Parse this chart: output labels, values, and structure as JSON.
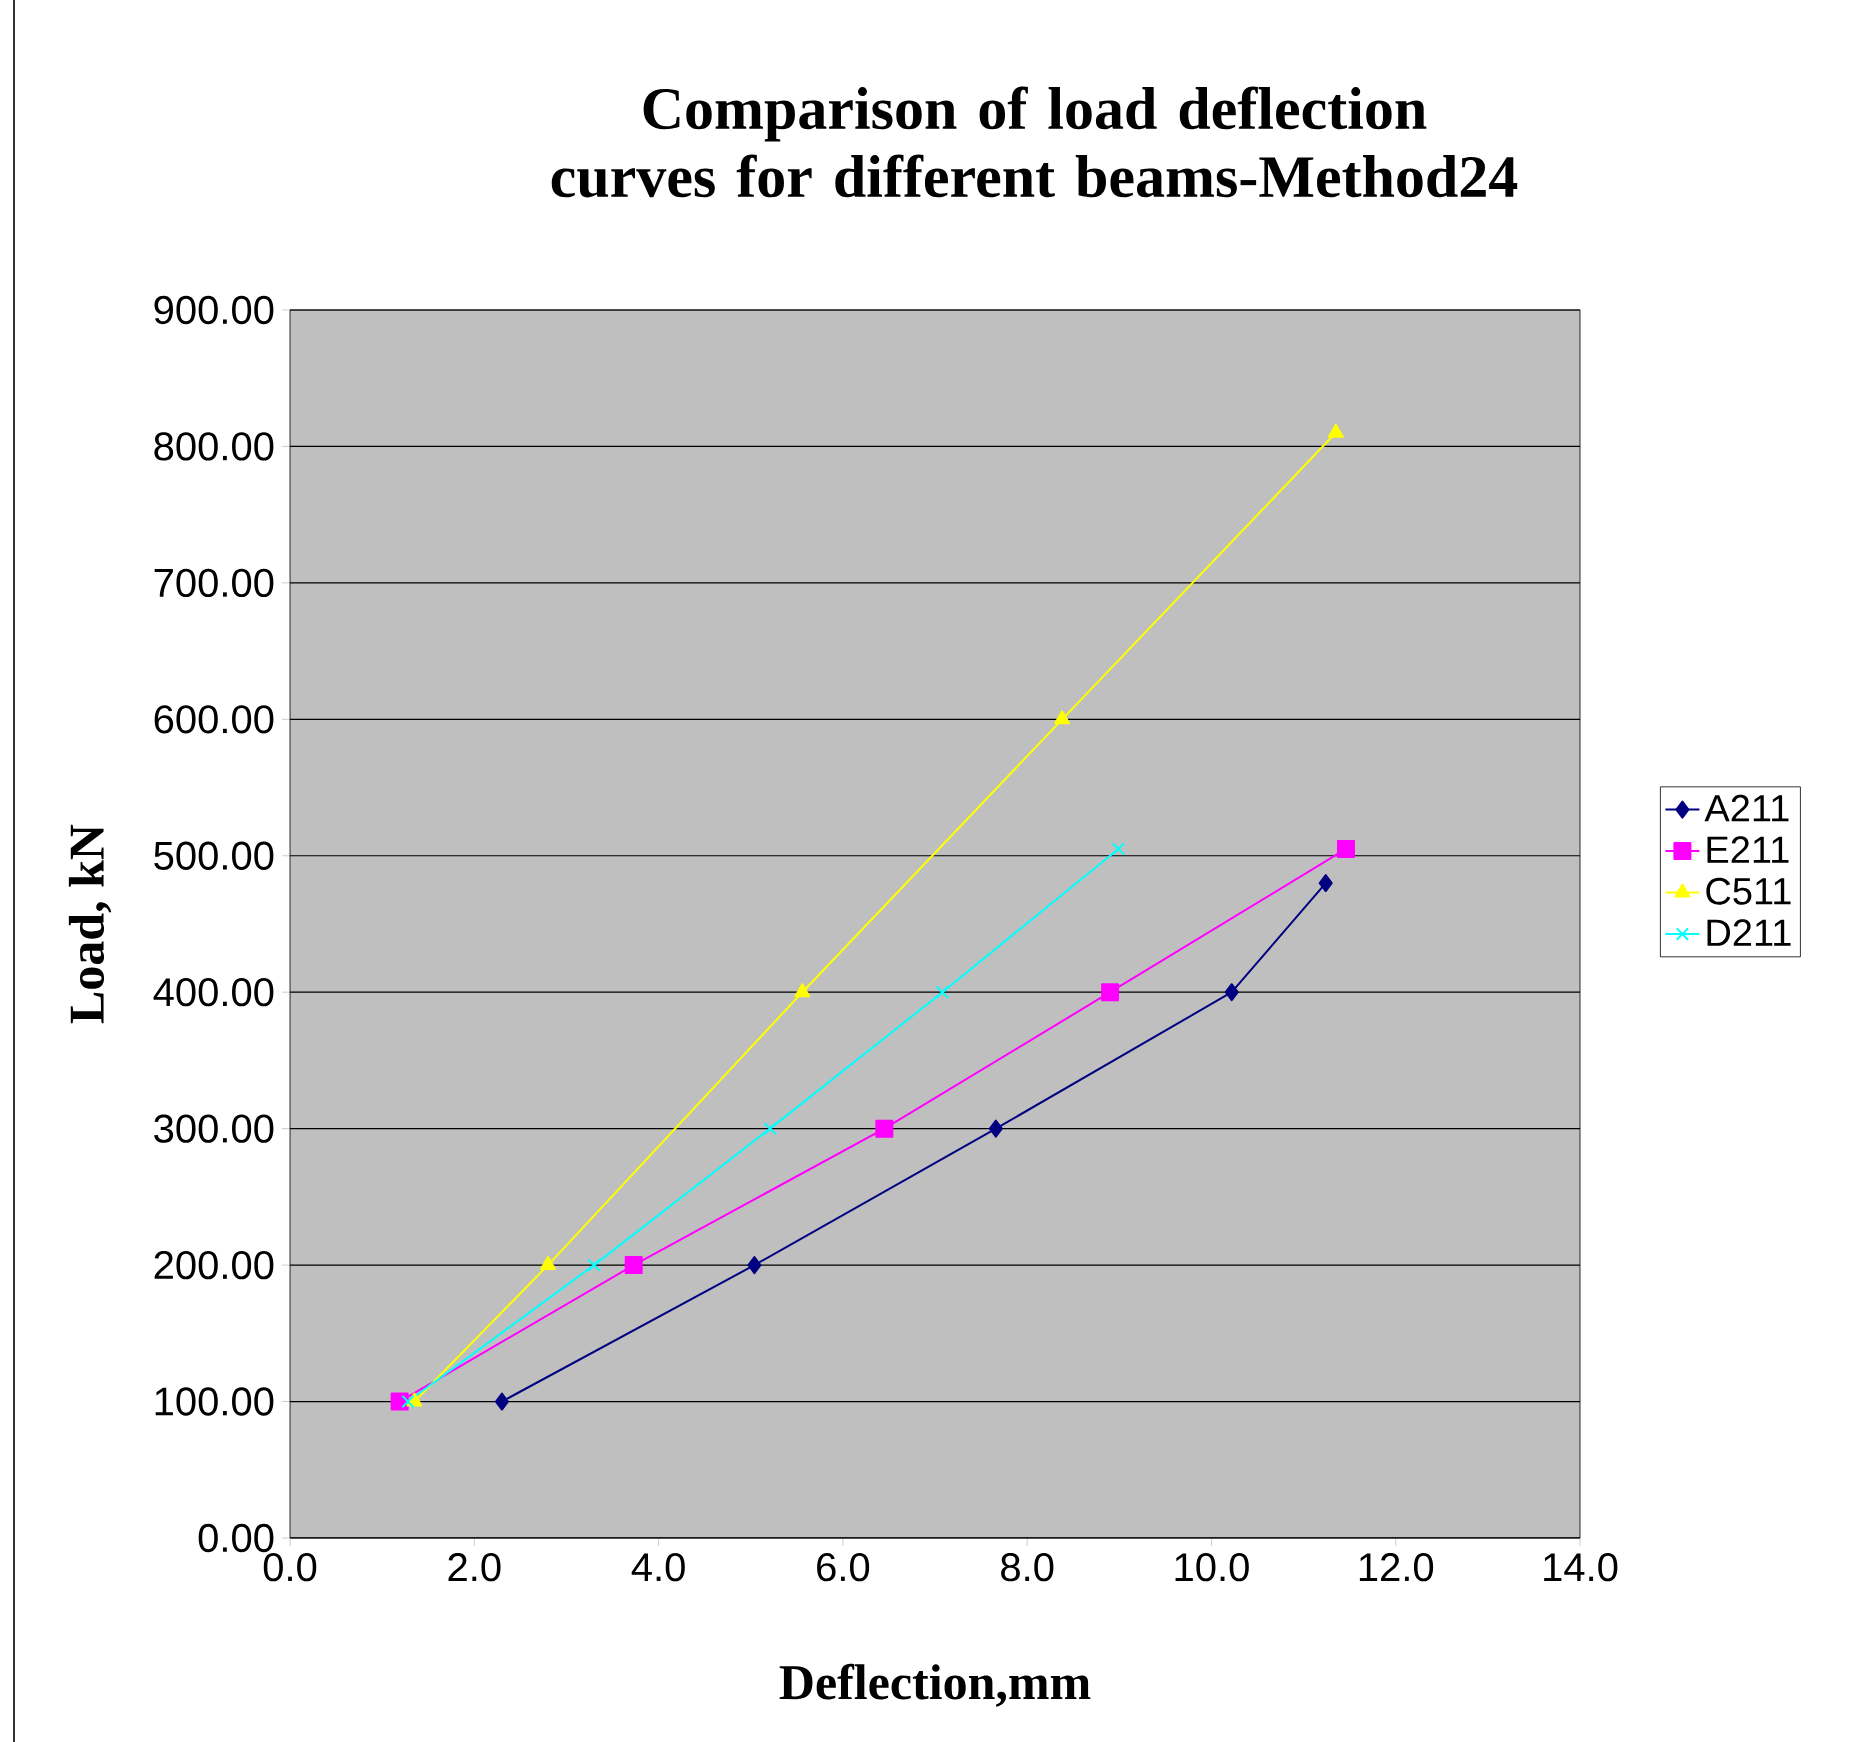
{
  "chart_data": {
    "type": "line",
    "title": "Comparison of load deflection curves for different beams-Method24",
    "xlabel": "Deflection,mm",
    "ylabel": "Load, kN",
    "series": [
      {
        "name": "A211",
        "color": "#000080",
        "marker": "diamond",
        "x": [
          2.3,
          5.04,
          7.66,
          10.22,
          11.24
        ],
        "values": [
          100,
          200,
          300,
          400,
          480
        ]
      },
      {
        "name": "E211",
        "color": "#ff00ff",
        "marker": "square",
        "x": [
          1.19,
          3.73,
          6.45,
          8.9,
          11.46
        ],
        "values": [
          100,
          200,
          300,
          400,
          505
        ]
      },
      {
        "name": "C511",
        "color": "#ffff00",
        "marker": "triangle",
        "x": [
          1.35,
          2.8,
          5.56,
          8.38,
          11.35
        ],
        "values": [
          100,
          200,
          400,
          600,
          810
        ]
      },
      {
        "name": "D211",
        "color": "#00ffff",
        "marker": "cross",
        "x": [
          1.28,
          3.3,
          5.21,
          7.08,
          8.99
        ],
        "values": [
          100,
          200,
          300,
          400,
          505
        ]
      }
    ],
    "xlim": [
      0,
      14
    ],
    "ylim": [
      0,
      900
    ],
    "xticks": [
      {
        "value": 0,
        "label": "0.0"
      },
      {
        "value": 2,
        "label": "2.0"
      },
      {
        "value": 4,
        "label": "4.0"
      },
      {
        "value": 6,
        "label": "6.0"
      },
      {
        "value": 8,
        "label": "8.0"
      },
      {
        "value": 10,
        "label": "10.0"
      },
      {
        "value": 12,
        "label": "12.0"
      },
      {
        "value": 14,
        "label": "14.0"
      }
    ],
    "yticks": [
      {
        "value": 0,
        "label": "0.00"
      },
      {
        "value": 100,
        "label": "100.00"
      },
      {
        "value": 200,
        "label": "200.00"
      },
      {
        "value": 300,
        "label": "300.00"
      },
      {
        "value": 400,
        "label": "400.00"
      },
      {
        "value": 500,
        "label": "500.00"
      },
      {
        "value": 600,
        "label": "600.00"
      },
      {
        "value": 700,
        "label": "700.00"
      },
      {
        "value": 800,
        "label": "800.00"
      },
      {
        "value": 900,
        "label": "900.00"
      }
    ],
    "grid": "y",
    "legend": "right",
    "line_style": "solid"
  }
}
